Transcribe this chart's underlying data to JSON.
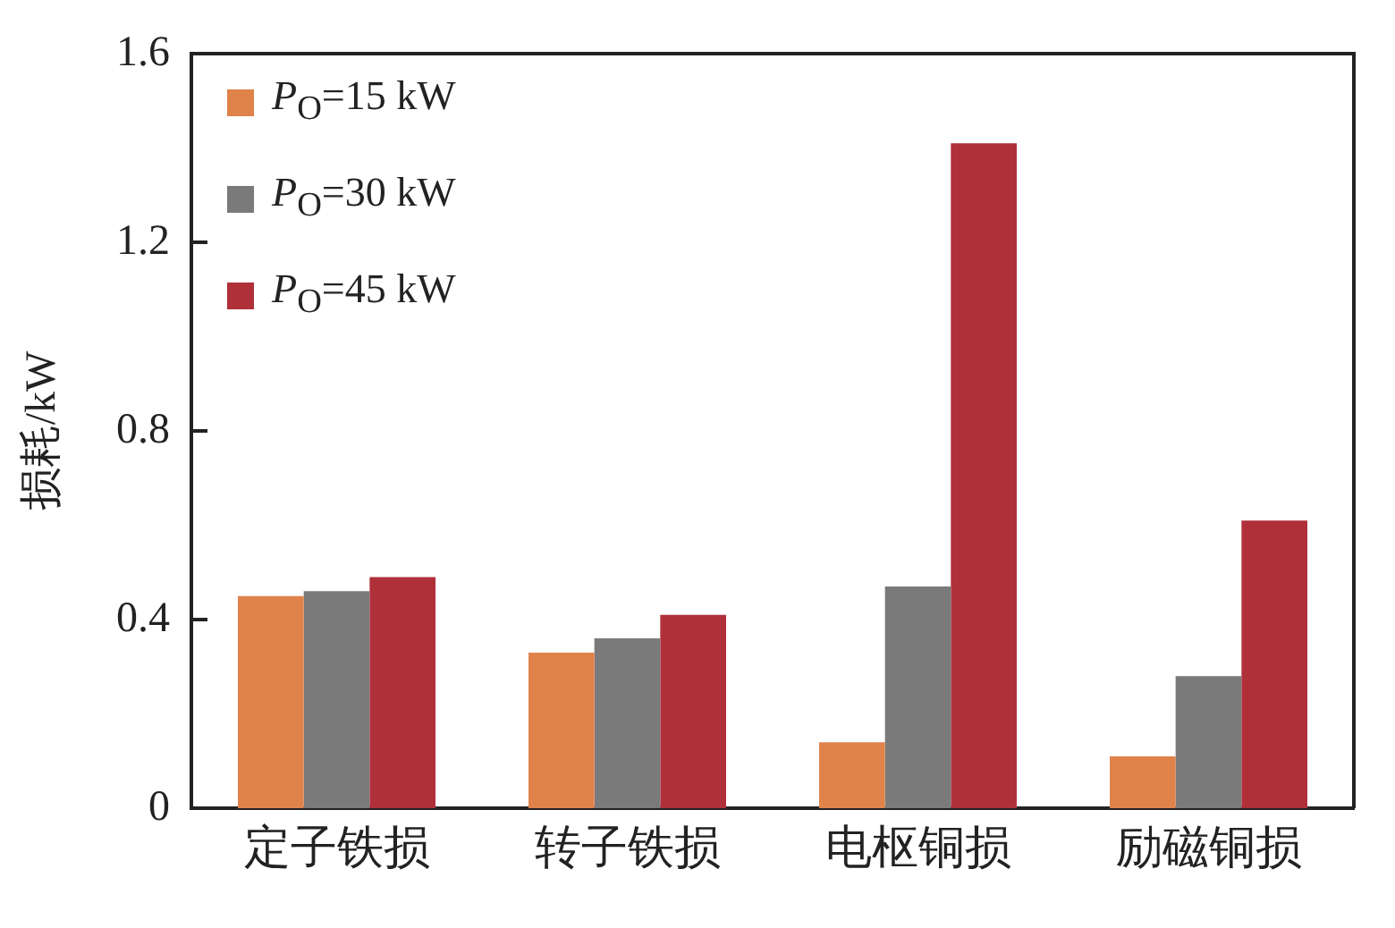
{
  "chart_data": {
    "type": "bar",
    "ylabel": "损耗/kW",
    "categories": [
      "定子铁损",
      "转子铁损",
      "电枢铜损",
      "励磁铜损"
    ],
    "series": [
      {
        "name": "P$_{O}$=15 kW",
        "color": "#e0834b",
        "values": [
          0.45,
          0.33,
          0.14,
          0.11
        ]
      },
      {
        "name": "P$_{O}$=30 kW",
        "color": "#7a7a7a",
        "values": [
          0.46,
          0.36,
          0.47,
          0.28
        ]
      },
      {
        "name": "P$_{O}$=45 kW",
        "color": "#b0303a",
        "values": [
          0.49,
          0.41,
          1.41,
          0.61
        ]
      }
    ],
    "ylim": [
      0,
      1.6
    ],
    "yticks": [
      0,
      0.4,
      0.8,
      1.2,
      1.6
    ],
    "grid": false,
    "legend": "top left"
  }
}
